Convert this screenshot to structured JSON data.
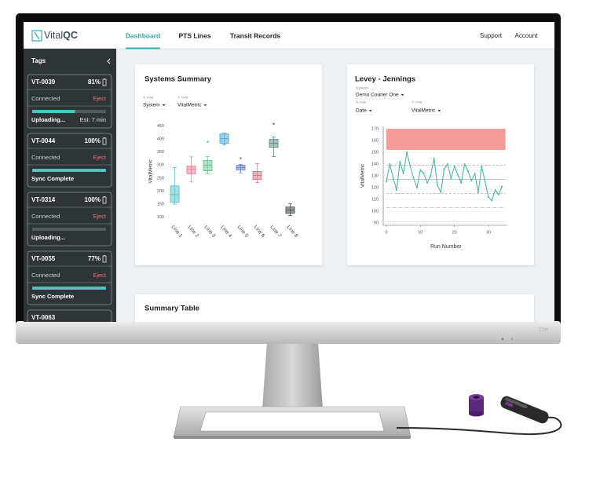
{
  "monitor": {
    "label": "22er"
  },
  "header": {
    "brand": {
      "light": "Vital",
      "bold": "QC"
    },
    "nav": [
      "Dashboard",
      "PTS Lines",
      "Transit Records"
    ],
    "active_nav": 0,
    "links": [
      "Support",
      "Account"
    ]
  },
  "sidebar": {
    "title": "Tags",
    "tags": [
      {
        "id": "VT-0039",
        "battery": "81%",
        "status": "Connected",
        "action": "Eject",
        "progress": 58,
        "progress_label": "Uploading...",
        "eta": "Est: 7 min"
      },
      {
        "id": "VT-0044",
        "battery": "100%",
        "status": "Connected",
        "action": "Eject",
        "progress": 100,
        "progress_label": "Sync Complete"
      },
      {
        "id": "VT-0314",
        "battery": "100%",
        "status": "Connected",
        "action": "Eject",
        "progress": 0,
        "progress_label": "Uploading..."
      },
      {
        "id": "VT-0055",
        "battery": "77%",
        "status": "Connected",
        "action": "Eject",
        "progress": 100,
        "progress_label": "Sync Complete"
      },
      {
        "id": "VT-0063"
      }
    ]
  },
  "summary_table": {
    "title": "Summary Table"
  },
  "chart_data": [
    {
      "type": "box",
      "title": "Systems Summary",
      "controls": [
        {
          "label": "X Axis",
          "value": "System"
        },
        {
          "label": "Y Axis",
          "value": "VitalMetric"
        }
      ],
      "ylabel": "VitalMetric",
      "categories": [
        "Line 1",
        "Line 2",
        "Line 3",
        "Line 4",
        "Line 5",
        "Line 6",
        "Line 7",
        "Line 8"
      ],
      "colors": [
        "#5bc4c9",
        "#f0829a",
        "#6cc79a",
        "#5aa7d6",
        "#6f86c9",
        "#ef6f86",
        "#5f8f86",
        "#4a5150"
      ],
      "boxes": [
        {
          "low": 150,
          "q1": 157,
          "median": 187,
          "q3": 220,
          "high": 290,
          "outliers": []
        },
        {
          "low": 235,
          "q1": 266,
          "median": 284,
          "q3": 296,
          "high": 331,
          "outliers": []
        },
        {
          "low": 266,
          "q1": 278,
          "median": 299,
          "q3": 317,
          "high": 332,
          "outliers": [
            389
          ]
        },
        {
          "low": 377,
          "q1": 383,
          "median": 401,
          "q3": 419,
          "high": 422,
          "outliers": []
        },
        {
          "low": 270,
          "q1": 281,
          "median": 290,
          "q3": 299,
          "high": 302,
          "outliers": [
            326
          ]
        },
        {
          "low": 233,
          "q1": 245,
          "median": 260,
          "q3": 275,
          "high": 305,
          "outliers": []
        },
        {
          "low": 332,
          "q1": 368,
          "median": 383,
          "q3": 398,
          "high": 407,
          "outliers": [
            458
          ]
        },
        {
          "low": 106,
          "q1": 115,
          "median": 127,
          "q3": 139,
          "high": 151,
          "outliers": []
        }
      ],
      "ylim": [
        90,
        460
      ],
      "yticks": [
        100,
        150,
        200,
        250,
        300,
        350,
        400,
        450
      ]
    },
    {
      "type": "line",
      "title": "Levey - Jennings",
      "controls": [
        {
          "label": "System",
          "value": "Demo Courier One"
        },
        {
          "label": "X Axis",
          "value": "Date"
        },
        {
          "label": "Y Axis",
          "value": "VitalMetric"
        }
      ],
      "ylabel": "VitalMetric",
      "xlabel": "Run Number",
      "color": "#4fb8a8",
      "x": [
        0,
        1,
        2,
        3,
        4,
        5,
        6,
        7,
        8,
        9,
        10,
        11,
        12,
        13,
        14,
        15,
        16,
        17,
        18,
        19,
        20,
        21,
        22,
        23,
        24,
        25,
        26,
        27,
        28,
        29,
        30,
        31,
        32,
        33,
        34
      ],
      "values": [
        125,
        140,
        128,
        118,
        142,
        132,
        150,
        138,
        128,
        120,
        135,
        132,
        124,
        130,
        145,
        122,
        116,
        136,
        140,
        128,
        138,
        131,
        124,
        140,
        134,
        126,
        132,
        116,
        138,
        125,
        112,
        109,
        118,
        114,
        121
      ],
      "control_band": [
        152,
        170
      ],
      "band_color": "#f28b8b",
      "reference_lines": [
        139,
        127,
        115,
        103,
        91
      ],
      "reference_styles": [
        "dashed",
        "solid",
        "dashed",
        "dashdot",
        "dotted"
      ],
      "xlim": [
        0,
        35
      ],
      "xticks": [
        0,
        10,
        20,
        30
      ],
      "ylim": [
        90,
        170
      ],
      "yticks": [
        90,
        100,
        110,
        120,
        130,
        140,
        150,
        160,
        170
      ],
      "grid": true
    }
  ]
}
